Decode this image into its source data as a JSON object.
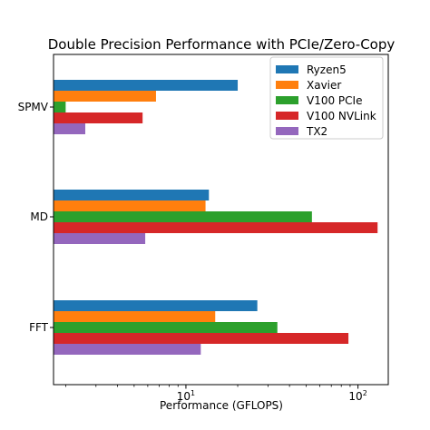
{
  "chart_data": {
    "type": "bar",
    "orientation": "horizontal",
    "title": "Double Precision Performance with PCIe/Zero-Copy",
    "xlabel": "Performance (GFLOPS)",
    "ylabel": "",
    "xscale": "log",
    "xlim": [
      1.7,
      150
    ],
    "xticks": [
      {
        "value": 10,
        "base": "10",
        "exp": "1"
      },
      {
        "value": 100,
        "base": "10",
        "exp": "2"
      }
    ],
    "categories": [
      "SPMV",
      "MD",
      "FFT"
    ],
    "series": [
      {
        "name": "TX2",
        "color": "#9467bd",
        "values": [
          2.6,
          5.8,
          12.2
        ]
      },
      {
        "name": "V100 NVLink",
        "color": "#d62728",
        "values": [
          5.6,
          130,
          88
        ]
      },
      {
        "name": "V100 PCIe",
        "color": "#2ca02c",
        "values": [
          2.0,
          54,
          34
        ]
      },
      {
        "name": "Xavier",
        "color": "#ff7f0e",
        "values": [
          6.7,
          13.0,
          14.8
        ]
      },
      {
        "name": "Ryzen5",
        "color": "#1f77b4",
        "values": [
          20,
          13.6,
          26
        ]
      }
    ],
    "legend_position": "top-right",
    "grid": false
  }
}
